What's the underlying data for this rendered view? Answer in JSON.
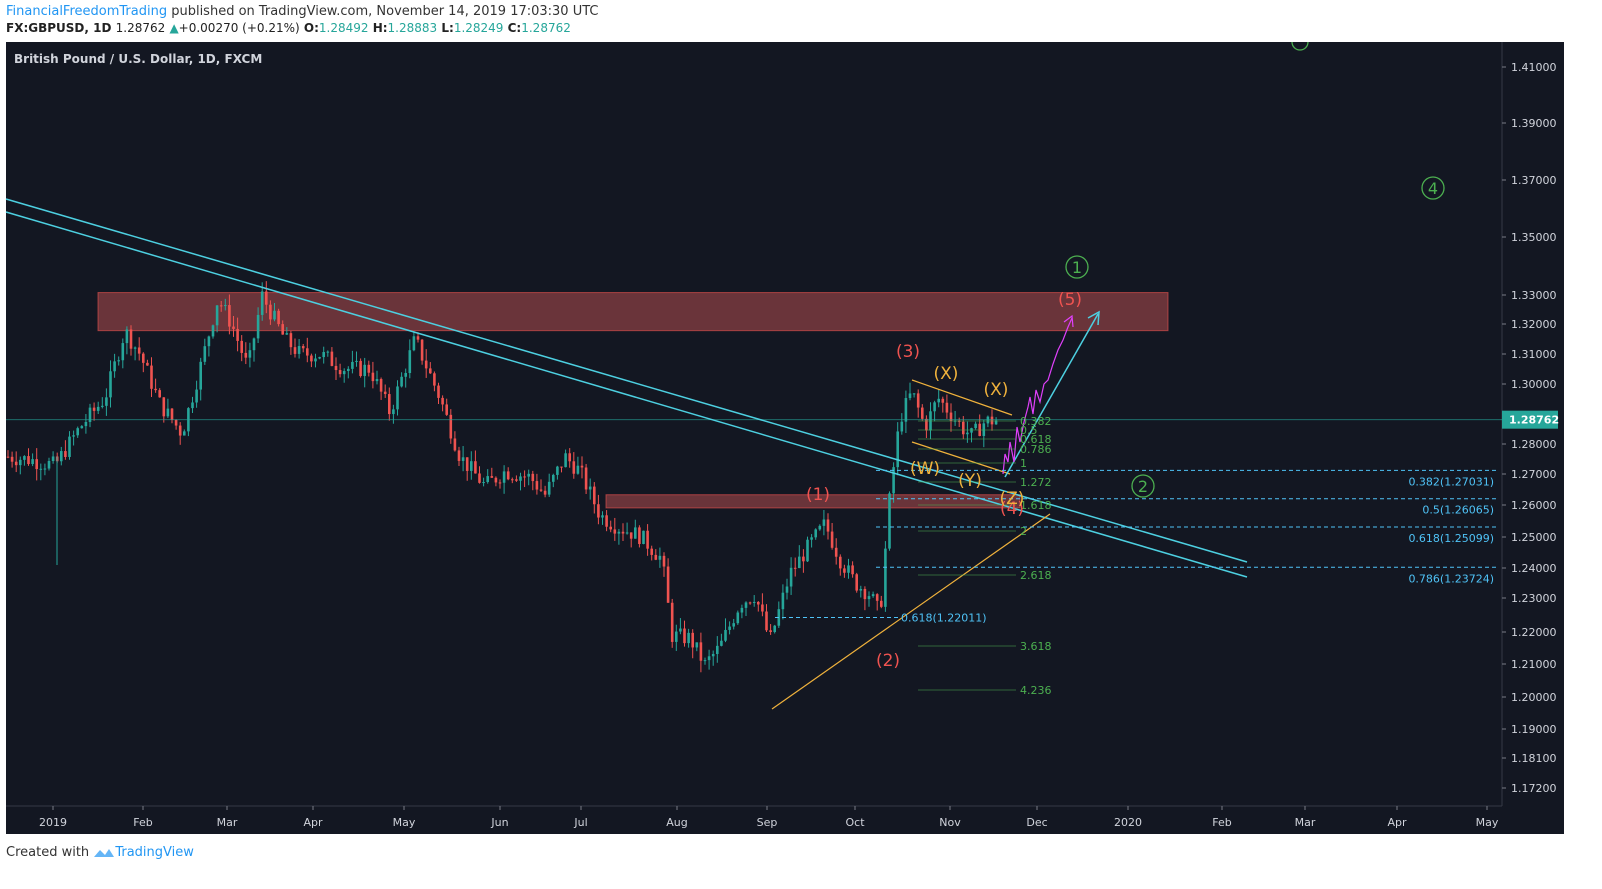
{
  "header": {
    "author": "FinancialFreedomTrading",
    "published": " published on TradingView.com, November 14, 2019 17:03:30 UTC",
    "symbol": "FX:GBPUSD, 1D",
    "last": "1.28762",
    "change_icon": "up-triangle-icon",
    "change": "+0.00270 (+0.21%)",
    "o_label": "O:",
    "o": "1.28492",
    "h_label": "H:",
    "h": "1.28883",
    "l_label": "L:",
    "l": "1.28249",
    "c_label": "C:",
    "c": "1.28762"
  },
  "footer": {
    "created": "Created with",
    "brand": "TradingView",
    "icon": "tradingview-logo-icon"
  },
  "colors": {
    "background": "#131722",
    "up": "#26a69a",
    "down": "#ef5350",
    "trendline": "#4dd0e1",
    "wedge": "#f0b23c",
    "zone": "#7a3a3e",
    "fib": "#4caf50",
    "fib_cyan": "#4fc3f7",
    "wave_red": "#ef5350",
    "wave_orange": "#f0b23c",
    "wave_green": "#4caf50",
    "projection": "#e040fb"
  },
  "chart_data": {
    "type": "candlestick",
    "title": "British Pound / U.S. Dollar, 1D, FXCM",
    "ylim": [
      1.164,
      1.416
    ],
    "x_ticks": [
      "2019",
      "Feb",
      "Mar",
      "Apr",
      "May",
      "Jun",
      "Jul",
      "Aug",
      "Sep",
      "Oct",
      "Nov",
      "Dec",
      "2020",
      "Feb",
      "Mar",
      "Apr",
      "May"
    ],
    "y_ticks": [
      "1.41000",
      "1.39000",
      "1.37000",
      "1.35000",
      "1.33000",
      "1.32000",
      "1.31000",
      "1.30000",
      "1.28000",
      "1.27000",
      "1.26000",
      "1.25000",
      "1.24000",
      "1.23000",
      "1.22000",
      "1.21000",
      "1.20000",
      "1.19000",
      "1.18100",
      "1.17200"
    ],
    "last_price_label": "1.28762",
    "last_price": 1.28762,
    "resistance_zones": [
      {
        "from": 1.318,
        "to": 1.331
      },
      {
        "from": 1.2575,
        "to": 1.262
      }
    ],
    "fib_retracements": [
      {
        "label": "0.382(1.27031)",
        "value": 1.27031
      },
      {
        "label": "0.5(1.26065)",
        "value": 1.26065
      },
      {
        "label": "0.618(1.25099)",
        "value": 1.25099
      },
      {
        "label": "0.786(1.23724)",
        "value": 1.23724
      },
      {
        "label": "0.618(1.22011)",
        "value": 1.22011
      }
    ],
    "fib_extension_labels": [
      "0.382",
      "0.5",
      "0.618",
      "0.786",
      "1",
      "1.272",
      "1.618",
      "2",
      "2.618",
      "3.618",
      "4.236"
    ],
    "wave_labels": {
      "red": [
        "(1)",
        "(2)",
        "(3)",
        "(4)",
        "(5)"
      ],
      "orange": [
        "(W)",
        "(X)",
        "(X)",
        "(Y)",
        "(Z)"
      ],
      "green": [
        "1",
        "2",
        "4"
      ]
    }
  }
}
